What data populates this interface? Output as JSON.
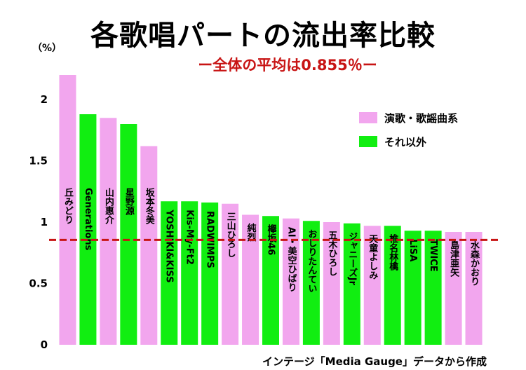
{
  "title": "各歌唱パートの流出率比較",
  "subtitle": "ー全体の平均は0.855％ー",
  "unit": "（%）",
  "source": "インテージ「Media Gauge」データから作成",
  "colors": {
    "enka": "#f2a6ee",
    "other": "#11ee11",
    "average": "#c81414"
  },
  "chart_data": {
    "type": "bar",
    "title": "各歌唱パートの流出率比較",
    "subtitle": "ー全体の平均は0.855％ー",
    "ylabel": "（%）",
    "ylim": [
      0,
      2.2
    ],
    "yticks": [
      0,
      0.5,
      1,
      1.5,
      2
    ],
    "ytick_labels": [
      "0",
      "0.5",
      "1",
      "1.5",
      "2"
    ],
    "average_line": 0.855,
    "grid": false,
    "legend_position": "top-right",
    "legend": [
      {
        "name": "演歌・歌謡曲系",
        "group": "enka"
      },
      {
        "name": "それ以外",
        "group": "other"
      }
    ],
    "bars": [
      {
        "label": "丘みどり",
        "value": 2.2,
        "group": "enka"
      },
      {
        "label": "Generations",
        "value": 1.88,
        "group": "other"
      },
      {
        "label": "山内惠介",
        "value": 1.85,
        "group": "enka"
      },
      {
        "label": "星野源",
        "value": 1.8,
        "group": "other"
      },
      {
        "label": "坂本冬美",
        "value": 1.62,
        "group": "enka"
      },
      {
        "label": "YOSHIKI&KISS",
        "value": 1.17,
        "group": "other"
      },
      {
        "label": "Kis-My-Ft2",
        "value": 1.17,
        "group": "other"
      },
      {
        "label": "RADWIMPS",
        "value": 1.16,
        "group": "other"
      },
      {
        "label": "三山ひろし",
        "value": 1.15,
        "group": "enka"
      },
      {
        "label": "純烈",
        "value": 1.06,
        "group": "enka"
      },
      {
        "label": "欅坂46",
        "value": 1.05,
        "group": "other"
      },
      {
        "label": "AI・美空ひばり",
        "value": 1.03,
        "group": "enka"
      },
      {
        "label": "おしりたんてい",
        "value": 1.01,
        "group": "other"
      },
      {
        "label": "五木ひろし",
        "value": 1.0,
        "group": "enka"
      },
      {
        "label": "ジャニーズJr",
        "value": 0.99,
        "group": "other"
      },
      {
        "label": "天童よしみ",
        "value": 0.97,
        "group": "enka"
      },
      {
        "label": "椎名林檎",
        "value": 0.97,
        "group": "other"
      },
      {
        "label": "LiSA",
        "value": 0.93,
        "group": "other"
      },
      {
        "label": "TWICE",
        "value": 0.93,
        "group": "other"
      },
      {
        "label": "島津亜矢",
        "value": 0.92,
        "group": "enka"
      },
      {
        "label": "水森かおり",
        "value": 0.92,
        "group": "enka"
      }
    ]
  }
}
